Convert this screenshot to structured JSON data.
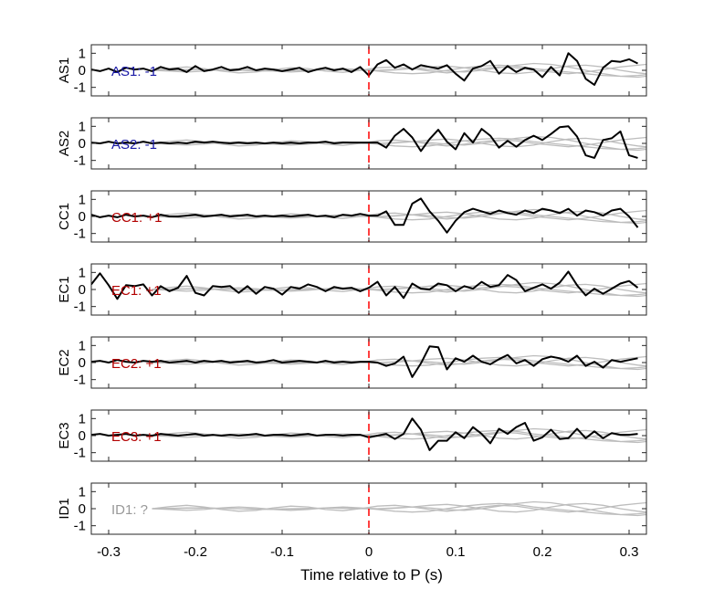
{
  "chart_data": {
    "type": "line",
    "xlabel": "Time relative to P (s)",
    "xlim": [
      -0.32,
      0.32
    ],
    "x_ticks": [
      -0.3,
      -0.2,
      -0.1,
      0,
      0.1,
      0.2,
      0.3
    ],
    "x_tick_labels": [
      "-0.3",
      "-0.2",
      "-0.1",
      "0",
      "0.1",
      "0.2",
      "0.3"
    ],
    "ylim": [
      -1.5,
      1.5
    ],
    "y_ticks": [
      1,
      0,
      -1
    ],
    "y_tick_labels": [
      "1",
      "0",
      "-1"
    ],
    "marker_line": {
      "x": 0,
      "color": "#ff0000",
      "style": "dashed"
    },
    "colors": {
      "trace": "#000000",
      "background_traces": "#bdbdbd",
      "positive_label": "#b30000",
      "negative_label": "#1a1aa6",
      "unknown_label": "#999999"
    },
    "panels": [
      {
        "station": "AS1",
        "label": "AS1: -1",
        "label_color": "#1a1aa6",
        "x": [
          -0.32,
          -0.31,
          -0.3,
          -0.29,
          -0.28,
          -0.27,
          -0.26,
          -0.25,
          -0.24,
          -0.23,
          -0.22,
          -0.21,
          -0.2,
          -0.19,
          -0.18,
          -0.17,
          -0.16,
          -0.15,
          -0.14,
          -0.13,
          -0.12,
          -0.11,
          -0.1,
          -0.09,
          -0.08,
          -0.07,
          -0.06,
          -0.05,
          -0.04,
          -0.03,
          -0.02,
          -0.01,
          0,
          0.01,
          0.02,
          0.03,
          0.04,
          0.05,
          0.06,
          0.07,
          0.08,
          0.09,
          0.1,
          0.11,
          0.12,
          0.13,
          0.14,
          0.15,
          0.16,
          0.17,
          0.18,
          0.19,
          0.2,
          0.21,
          0.22,
          0.23,
          0.24,
          0.25,
          0.26,
          0.27,
          0.28,
          0.29,
          0.3,
          0.31
        ],
        "y": [
          0.05,
          -0.05,
          0.1,
          -0.1,
          0.15,
          0.05,
          0.1,
          -0.05,
          0.2,
          0.05,
          0.1,
          -0.1,
          0.25,
          -0.05,
          0.05,
          0.2,
          0,
          0.05,
          0.2,
          0,
          0.1,
          0.05,
          -0.05,
          0.05,
          0.15,
          -0.1,
          0.05,
          0.15,
          0,
          0.1,
          -0.1,
          0.2,
          -0.3,
          0.35,
          0.6,
          0.15,
          0.35,
          0.05,
          0.3,
          0.2,
          0.1,
          0.3,
          -0.2,
          -0.6,
          0.1,
          0.25,
          0.55,
          -0.2,
          0.25,
          -0.1,
          0.15,
          0.05,
          -0.4,
          0.2,
          -0.3,
          1,
          0.55,
          -0.5,
          -0.85,
          0.15,
          0.55,
          0.5,
          0.65,
          0.4
        ]
      },
      {
        "station": "AS2",
        "label": "AS2: -1",
        "label_color": "#1a1aa6",
        "x": [
          -0.32,
          -0.31,
          -0.3,
          -0.29,
          -0.28,
          -0.27,
          -0.26,
          -0.25,
          -0.24,
          -0.23,
          -0.22,
          -0.21,
          -0.2,
          -0.19,
          -0.18,
          -0.17,
          -0.16,
          -0.15,
          -0.14,
          -0.13,
          -0.12,
          -0.11,
          -0.1,
          -0.09,
          -0.08,
          -0.07,
          -0.06,
          -0.05,
          -0.04,
          -0.03,
          -0.02,
          -0.01,
          0,
          0.01,
          0.02,
          0.03,
          0.04,
          0.05,
          0.06,
          0.07,
          0.08,
          0.09,
          0.1,
          0.11,
          0.12,
          0.13,
          0.14,
          0.15,
          0.16,
          0.17,
          0.18,
          0.19,
          0.2,
          0.21,
          0.22,
          0.23,
          0.24,
          0.25,
          0.26,
          0.27,
          0.28,
          0.29,
          0.3,
          0.31
        ],
        "y": [
          0.05,
          0,
          0.1,
          0,
          0.05,
          0,
          0.1,
          0,
          0.05,
          0,
          0.05,
          0,
          0.1,
          0.05,
          0.1,
          0.05,
          0,
          0.05,
          0,
          0.05,
          0,
          0.05,
          0,
          0.05,
          0,
          0.05,
          0.05,
          0.1,
          0,
          0.05,
          0.05,
          0.05,
          0.05,
          0.05,
          -0.25,
          0.45,
          0.85,
          0.35,
          -0.45,
          0.25,
          0.8,
          0.1,
          -0.35,
          0.6,
          0.05,
          0.85,
          0.45,
          -0.25,
          0.15,
          -0.2,
          0.2,
          0.45,
          0.2,
          0.55,
          0.95,
          1,
          0.4,
          -0.7,
          -0.85,
          0.2,
          0.3,
          0.7,
          -0.7,
          -0.85
        ]
      },
      {
        "station": "CC1",
        "label": "CC1: +1",
        "label_color": "#b30000",
        "x": [
          -0.32,
          -0.31,
          -0.3,
          -0.29,
          -0.28,
          -0.27,
          -0.26,
          -0.25,
          -0.24,
          -0.23,
          -0.22,
          -0.21,
          -0.2,
          -0.19,
          -0.18,
          -0.17,
          -0.16,
          -0.15,
          -0.14,
          -0.13,
          -0.12,
          -0.11,
          -0.1,
          -0.09,
          -0.08,
          -0.07,
          -0.06,
          -0.05,
          -0.04,
          -0.03,
          -0.02,
          -0.01,
          0,
          0.01,
          0.02,
          0.03,
          0.04,
          0.05,
          0.06,
          0.07,
          0.08,
          0.09,
          0.1,
          0.11,
          0.12,
          0.13,
          0.14,
          0.15,
          0.16,
          0.17,
          0.18,
          0.19,
          0.2,
          0.21,
          0.22,
          0.23,
          0.24,
          0.25,
          0.26,
          0.27,
          0.28,
          0.29,
          0.3,
          0.31
        ],
        "y": [
          0.1,
          -0.05,
          0.05,
          -0.05,
          0.1,
          0,
          0.05,
          -0.05,
          0.1,
          0,
          0,
          0.05,
          0.1,
          0,
          0.05,
          0.1,
          0,
          0.05,
          0.1,
          0,
          0.05,
          0,
          0.05,
          0,
          0.05,
          0.1,
          0,
          0.05,
          -0.05,
          0.1,
          0.05,
          0.15,
          0.05,
          0.05,
          0.3,
          -0.5,
          -0.5,
          0.75,
          1.05,
          0.3,
          -0.25,
          -0.95,
          -0.25,
          0.25,
          0.45,
          0.3,
          0.15,
          0.35,
          0.2,
          0.1,
          0.35,
          0.2,
          0.45,
          0.35,
          0.2,
          0.45,
          0.05,
          0.35,
          0.25,
          0.05,
          0.35,
          0.45,
          0,
          -0.65
        ]
      },
      {
        "station": "EC1",
        "label": "EC1: +1",
        "label_color": "#b30000",
        "x": [
          -0.32,
          -0.31,
          -0.3,
          -0.29,
          -0.28,
          -0.27,
          -0.26,
          -0.25,
          -0.24,
          -0.23,
          -0.22,
          -0.21,
          -0.2,
          -0.19,
          -0.18,
          -0.17,
          -0.16,
          -0.15,
          -0.14,
          -0.13,
          -0.12,
          -0.11,
          -0.1,
          -0.09,
          -0.08,
          -0.07,
          -0.06,
          -0.05,
          -0.04,
          -0.03,
          -0.02,
          -0.01,
          0,
          0.01,
          0.02,
          0.03,
          0.04,
          0.05,
          0.06,
          0.07,
          0.08,
          0.09,
          0.1,
          0.11,
          0.12,
          0.13,
          0.14,
          0.15,
          0.16,
          0.17,
          0.18,
          0.19,
          0.2,
          0.21,
          0.22,
          0.23,
          0.24,
          0.25,
          0.26,
          0.27,
          0.28,
          0.29,
          0.3,
          0.31
        ],
        "y": [
          0.3,
          0.95,
          0.25,
          -0.55,
          0.25,
          0.2,
          0.3,
          -0.35,
          0.2,
          -0.1,
          0.1,
          0.8,
          -0.2,
          -0.35,
          0.2,
          0.15,
          0.2,
          -0.2,
          0.2,
          -0.25,
          0.15,
          0.05,
          -0.3,
          0.15,
          0.05,
          0.3,
          0.15,
          -0.1,
          0.15,
          0.05,
          0.1,
          -0.1,
          0.1,
          0.45,
          -0.35,
          0.15,
          -0.5,
          0.35,
          0.05,
          0,
          0.35,
          0.25,
          -0.1,
          0.2,
          0.05,
          0.45,
          0.15,
          0.25,
          0.85,
          0.55,
          -0.1,
          0.1,
          0.3,
          0.05,
          0.4,
          1.05,
          0.25,
          -0.35,
          0.05,
          -0.25,
          0.05,
          0.35,
          0.5,
          0.1
        ]
      },
      {
        "station": "EC2",
        "label": "EC2: +1",
        "label_color": "#b30000",
        "x": [
          -0.32,
          -0.31,
          -0.3,
          -0.29,
          -0.28,
          -0.27,
          -0.26,
          -0.25,
          -0.24,
          -0.23,
          -0.22,
          -0.21,
          -0.2,
          -0.19,
          -0.18,
          -0.17,
          -0.16,
          -0.15,
          -0.14,
          -0.13,
          -0.12,
          -0.11,
          -0.1,
          -0.09,
          -0.08,
          -0.07,
          -0.06,
          -0.05,
          -0.04,
          -0.03,
          -0.02,
          -0.01,
          0,
          0.01,
          0.02,
          0.03,
          0.04,
          0.05,
          0.06,
          0.07,
          0.08,
          0.09,
          0.1,
          0.11,
          0.12,
          0.13,
          0.14,
          0.15,
          0.16,
          0.17,
          0.18,
          0.19,
          0.2,
          0.21,
          0.22,
          0.23,
          0.24,
          0.25,
          0.26,
          0.27,
          0.28,
          0.29,
          0.3,
          0.31
        ],
        "y": [
          0.05,
          0.1,
          0,
          0.15,
          0.05,
          0,
          0.1,
          0.05,
          0.1,
          0,
          0.05,
          0.1,
          0,
          0.1,
          0.05,
          0.1,
          0,
          0.05,
          0.1,
          0,
          0.05,
          0.15,
          0,
          0.05,
          0.1,
          0.05,
          0,
          0.1,
          0,
          0.05,
          0,
          0.05,
          0.05,
          0,
          -0.2,
          -0.05,
          0.35,
          -0.85,
          -0.05,
          0.95,
          0.9,
          -0.4,
          0.25,
          0.05,
          0.4,
          0.05,
          -0.1,
          0.2,
          0.45,
          -0.05,
          0.15,
          -0.2,
          0.2,
          0.35,
          0.25,
          0.05,
          0.4,
          -0.2,
          0.05,
          -0.3,
          0.15,
          0.05,
          0.15,
          0.25
        ]
      },
      {
        "station": "EC3",
        "label": "EC3: +1",
        "label_color": "#b30000",
        "x": [
          -0.32,
          -0.31,
          -0.3,
          -0.29,
          -0.28,
          -0.27,
          -0.26,
          -0.25,
          -0.24,
          -0.23,
          -0.22,
          -0.21,
          -0.2,
          -0.19,
          -0.18,
          -0.17,
          -0.16,
          -0.15,
          -0.14,
          -0.13,
          -0.12,
          -0.11,
          -0.1,
          -0.09,
          -0.08,
          -0.07,
          -0.06,
          -0.05,
          -0.04,
          -0.03,
          -0.02,
          -0.01,
          0,
          0.01,
          0.02,
          0.03,
          0.04,
          0.05,
          0.06,
          0.07,
          0.08,
          0.09,
          0.1,
          0.11,
          0.12,
          0.13,
          0.14,
          0.15,
          0.16,
          0.17,
          0.18,
          0.19,
          0.2,
          0.21,
          0.22,
          0.23,
          0.24,
          0.25,
          0.26,
          0.27,
          0.28,
          0.29,
          0.3,
          0.31
        ],
        "y": [
          0.05,
          0.1,
          0,
          0.05,
          0.1,
          0,
          0.05,
          0,
          0.1,
          0.05,
          0,
          0.05,
          0.1,
          0,
          0.05,
          0,
          0.05,
          0,
          0.05,
          0.1,
          0,
          0.05,
          0.05,
          0,
          0.05,
          0.1,
          0,
          0.05,
          0.05,
          0,
          0.05,
          0.05,
          -0.1,
          0,
          0.1,
          -0.2,
          0.1,
          1,
          0.35,
          -0.85,
          -0.3,
          -0.3,
          0.2,
          -0.15,
          0.5,
          0.1,
          -0.45,
          0.4,
          0.1,
          0.5,
          0.75,
          -0.3,
          -0.1,
          0.35,
          -0.2,
          -0.15,
          0.4,
          -0.15,
          0.25,
          -0.15,
          0.15,
          0.05,
          0.05,
          0.1
        ]
      },
      {
        "station": "ID1",
        "label": "ID1: ?",
        "label_color": "#999999",
        "x": [],
        "y": []
      }
    ],
    "background_traces": {
      "x": [
        -0.25,
        -0.23,
        -0.21,
        -0.19,
        -0.17,
        -0.15,
        -0.13,
        -0.11,
        -0.09,
        -0.07,
        -0.05,
        -0.03,
        -0.01,
        0.01,
        0.03,
        0.05,
        0.07,
        0.09,
        0.11,
        0.13,
        0.15,
        0.17,
        0.19,
        0.21,
        0.23,
        0.25,
        0.27,
        0.29,
        0.31,
        0.32
      ],
      "series": [
        {
          "values": [
            0,
            0.12,
            0.2,
            0.1,
            -0.05,
            -0.15,
            -0.1,
            0.05,
            0.15,
            0.1,
            -0.05,
            -0.12,
            0,
            0.15,
            0.2,
            0.1,
            -0.05,
            -0.15,
            -0.05,
            0.1,
            0.2,
            0.15,
            0,
            -0.1,
            -0.2,
            -0.1,
            0.05,
            0.2,
            0.3,
            0.35
          ]
        },
        {
          "values": [
            0,
            -0.05,
            -0.1,
            -0.05,
            0.05,
            0.1,
            0.05,
            -0.05,
            -0.1,
            -0.05,
            0.05,
            0.1,
            0.05,
            -0.05,
            -0.15,
            -0.2,
            -0.15,
            0,
            0.15,
            0.25,
            0.3,
            0.25,
            0.1,
            0,
            -0.1,
            -0.2,
            -0.3,
            -0.35,
            -0.3,
            -0.25
          ]
        },
        {
          "values": [
            0,
            0.02,
            0.05,
            0.05,
            0.02,
            0,
            -0.02,
            -0.02,
            0,
            0.02,
            0.03,
            0.02,
            0,
            -0.02,
            0.02,
            0.1,
            0.2,
            0.25,
            0.15,
            0,
            -0.15,
            -0.2,
            -0.1,
            0.1,
            0.25,
            0.3,
            0.2,
            0,
            -0.15,
            -0.2
          ]
        },
        {
          "values": [
            0,
            0,
            0.02,
            0.03,
            0.02,
            0,
            -0.03,
            -0.05,
            -0.03,
            0,
            0.03,
            0.05,
            0.03,
            0,
            0.05,
            0.1,
            0.05,
            -0.05,
            -0.1,
            0,
            0.15,
            0.3,
            0.4,
            0.35,
            0.2,
            0,
            -0.2,
            -0.35,
            -0.4,
            -0.35
          ]
        }
      ]
    }
  }
}
